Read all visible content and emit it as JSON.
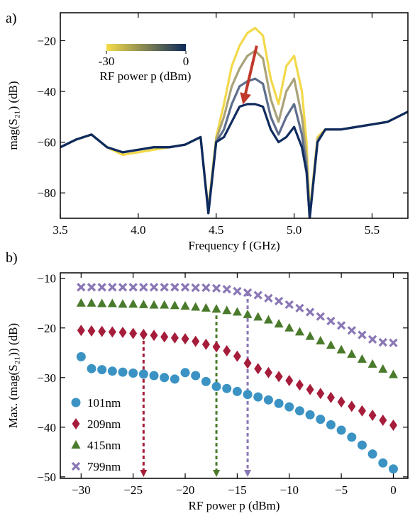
{
  "chart_data": [
    {
      "type": "line",
      "panel_label": "a)",
      "xlabel": "Frequency f (GHz)",
      "ylabel": "mag(S₂₁) (dB)",
      "xlim": [
        3.5,
        5.73
      ],
      "ylim": [
        -90,
        -9
      ],
      "xticks": [
        3.5,
        {
          "value": 4,
          "label": "4.0"
        },
        4.5,
        {
          "value": 5,
          "label": "5.0"
        },
        5.5
      ],
      "yticks": [
        {
          "value": -20,
          "label": "−20"
        },
        {
          "value": -40,
          "label": "−40"
        },
        {
          "value": -60,
          "label": "−60"
        },
        {
          "value": -80,
          "label": "−80"
        }
      ],
      "x": [
        3.5,
        3.6,
        3.7,
        3.8,
        3.9,
        4.0,
        4.1,
        4.2,
        4.3,
        4.4,
        4.42,
        4.45,
        4.5,
        4.55,
        4.6,
        4.65,
        4.7,
        4.75,
        4.8,
        4.85,
        4.9,
        4.95,
        5.0,
        5.05,
        5.08,
        5.1,
        5.15,
        5.2,
        5.3,
        5.4,
        5.5,
        5.6,
        5.73
      ],
      "series": [
        {
          "color": "#f2d94a",
          "values": [
            -62,
            -59,
            -57,
            -62,
            -65,
            -64,
            -63,
            -62,
            -61,
            -58,
            -70,
            -86,
            -58,
            -45,
            -30,
            -22,
            -17,
            -15,
            -18,
            -35,
            -45,
            -30,
            -26,
            -40,
            -60,
            -88,
            -58,
            -55,
            -55,
            -54,
            -53,
            -52,
            -48
          ]
        },
        {
          "color": "#a9a27a",
          "values": [
            -62,
            -59,
            -57,
            -62,
            -64,
            -63,
            -62,
            -62,
            -61,
            -58,
            -70,
            -87,
            -59,
            -50,
            -38,
            -31,
            -26,
            -24,
            -27,
            -43,
            -52,
            -40,
            -35,
            -50,
            -66,
            -89,
            -59,
            -55,
            -55,
            -54,
            -53,
            -52,
            -48
          ]
        },
        {
          "color": "#5d6d8c",
          "values": [
            -62,
            -59,
            -57,
            -62,
            -64,
            -63,
            -62,
            -62,
            -61,
            -58,
            -70,
            -88,
            -60,
            -55,
            -45,
            -38,
            -36,
            -35,
            -37,
            -50,
            -57,
            -50,
            -45,
            -57,
            -70,
            -90,
            -60,
            -55,
            -55,
            -54,
            -53,
            -52,
            -48
          ]
        },
        {
          "color": "#0f2b5e",
          "values": [
            -62,
            -59,
            -57,
            -62,
            -64,
            -63,
            -62,
            -62,
            -61,
            -58,
            -70,
            -88,
            -60,
            -58,
            -52,
            -46,
            -45,
            -45,
            -46,
            -55,
            -60,
            -58,
            -54,
            -62,
            -72,
            -90,
            -60,
            -55,
            -55,
            -54,
            -53,
            -52,
            -48
          ]
        }
      ],
      "colorbar": {
        "label": "RF power p (dBm)",
        "lim": [
          -30,
          0
        ],
        "ticks": [
          -30,
          0
        ],
        "colors": [
          "#f5dc4a",
          "#0d2a5c"
        ]
      },
      "arrow": {
        "x": [
          4.76,
          4.68
        ],
        "y": [
          -22,
          -43
        ],
        "color": "#c0392b"
      }
    },
    {
      "type": "scatter",
      "panel_label": "b)",
      "xlabel": "RF power p (dBm)",
      "ylabel": "Max. (mag(S₂₁)) (dB)",
      "xlim": [
        -32,
        1.4
      ],
      "ylim": [
        -50.3,
        -8.9
      ],
      "xticks": [
        {
          "value": -30,
          "label": "−30"
        },
        {
          "value": -25,
          "label": "−25"
        },
        {
          "value": -20,
          "label": "−20"
        },
        {
          "value": -15,
          "label": "−15"
        },
        {
          "value": -10,
          "label": "−10"
        },
        {
          "value": -5,
          "label": "−5"
        },
        0
      ],
      "yticks": [
        {
          "value": -10,
          "label": "−10"
        },
        {
          "value": -20,
          "label": "−20"
        },
        {
          "value": -30,
          "label": "−30"
        },
        {
          "value": -40,
          "label": "−40"
        },
        {
          "value": -50,
          "label": "−50"
        }
      ],
      "x": [
        -30,
        -29,
        -28,
        -27,
        -26,
        -25,
        -24,
        -23,
        -22,
        -21,
        -20,
        -19,
        -18,
        -17,
        -16,
        -15,
        -14,
        -13,
        -12,
        -11,
        -10,
        -9,
        -8,
        -7,
        -6,
        -5,
        -4,
        -3,
        -2,
        -1,
        0
      ],
      "legend": "lower left",
      "series": [
        {
          "name": "101nm",
          "color": "#3b93c4",
          "marker": "circle",
          "values": [
            -25.8,
            -28.2,
            -28.4,
            -28.7,
            -28.9,
            -29.1,
            -29.3,
            -29.6,
            -30.0,
            -30.3,
            -29.0,
            -29.6,
            -30.8,
            -31.8,
            -32.2,
            -32.8,
            -33.4,
            -33.9,
            -34.5,
            -35.2,
            -35.9,
            -36.7,
            -37.5,
            -38.4,
            -39.5,
            -40.6,
            -42.0,
            -43.6,
            -45.4,
            -47.2,
            -48.4
          ]
        },
        {
          "name": "209nm",
          "color": "#a51d3a",
          "marker": "diamond",
          "values": [
            -20.5,
            -20.6,
            -20.7,
            -20.8,
            -20.9,
            -21.1,
            -21.3,
            -21.5,
            -21.8,
            -22.0,
            -22.2,
            -22.7,
            -23.3,
            -23.8,
            -24.6,
            -25.7,
            -27.1,
            -28.2,
            -29.0,
            -29.8,
            -30.6,
            -31.5,
            -32.4,
            -33.2,
            -34.0,
            -34.9,
            -35.8,
            -36.7,
            -37.6,
            -38.6,
            -39.6
          ]
        },
        {
          "name": "415nm",
          "color": "#4a7a2b",
          "marker": "triangle",
          "values": [
            -15.0,
            -15.0,
            -15.1,
            -15.1,
            -15.2,
            -15.2,
            -15.3,
            -15.4,
            -15.4,
            -15.5,
            -15.6,
            -15.8,
            -16.0,
            -16.2,
            -16.5,
            -16.8,
            -17.3,
            -17.8,
            -18.4,
            -19.2,
            -20.0,
            -20.8,
            -21.7,
            -22.6,
            -23.5,
            -24.4,
            -25.3,
            -26.3,
            -27.3,
            -28.3,
            -29.4
          ]
        },
        {
          "name": "799nm",
          "color": "#8a77b5",
          "marker": "cross",
          "values": [
            -11.8,
            -11.8,
            -11.8,
            -11.8,
            -11.8,
            -11.8,
            -11.8,
            -11.8,
            -11.8,
            -11.8,
            -11.8,
            -11.9,
            -11.9,
            -12.0,
            -12.2,
            -12.6,
            -12.9,
            -13.4,
            -14.0,
            -14.6,
            -15.3,
            -16.0,
            -16.8,
            -17.7,
            -18.6,
            -19.5,
            -20.5,
            -21.4,
            -22.3,
            -22.9,
            -23.0
          ]
        }
      ],
      "arrows": [
        {
          "x": -24,
          "y": -21.3,
          "color": "#a51d3a"
        },
        {
          "x": -17,
          "y": -16.2,
          "color": "#4a7a2b"
        },
        {
          "x": -14,
          "y": -12.9,
          "color": "#8a77b5"
        }
      ]
    }
  ]
}
